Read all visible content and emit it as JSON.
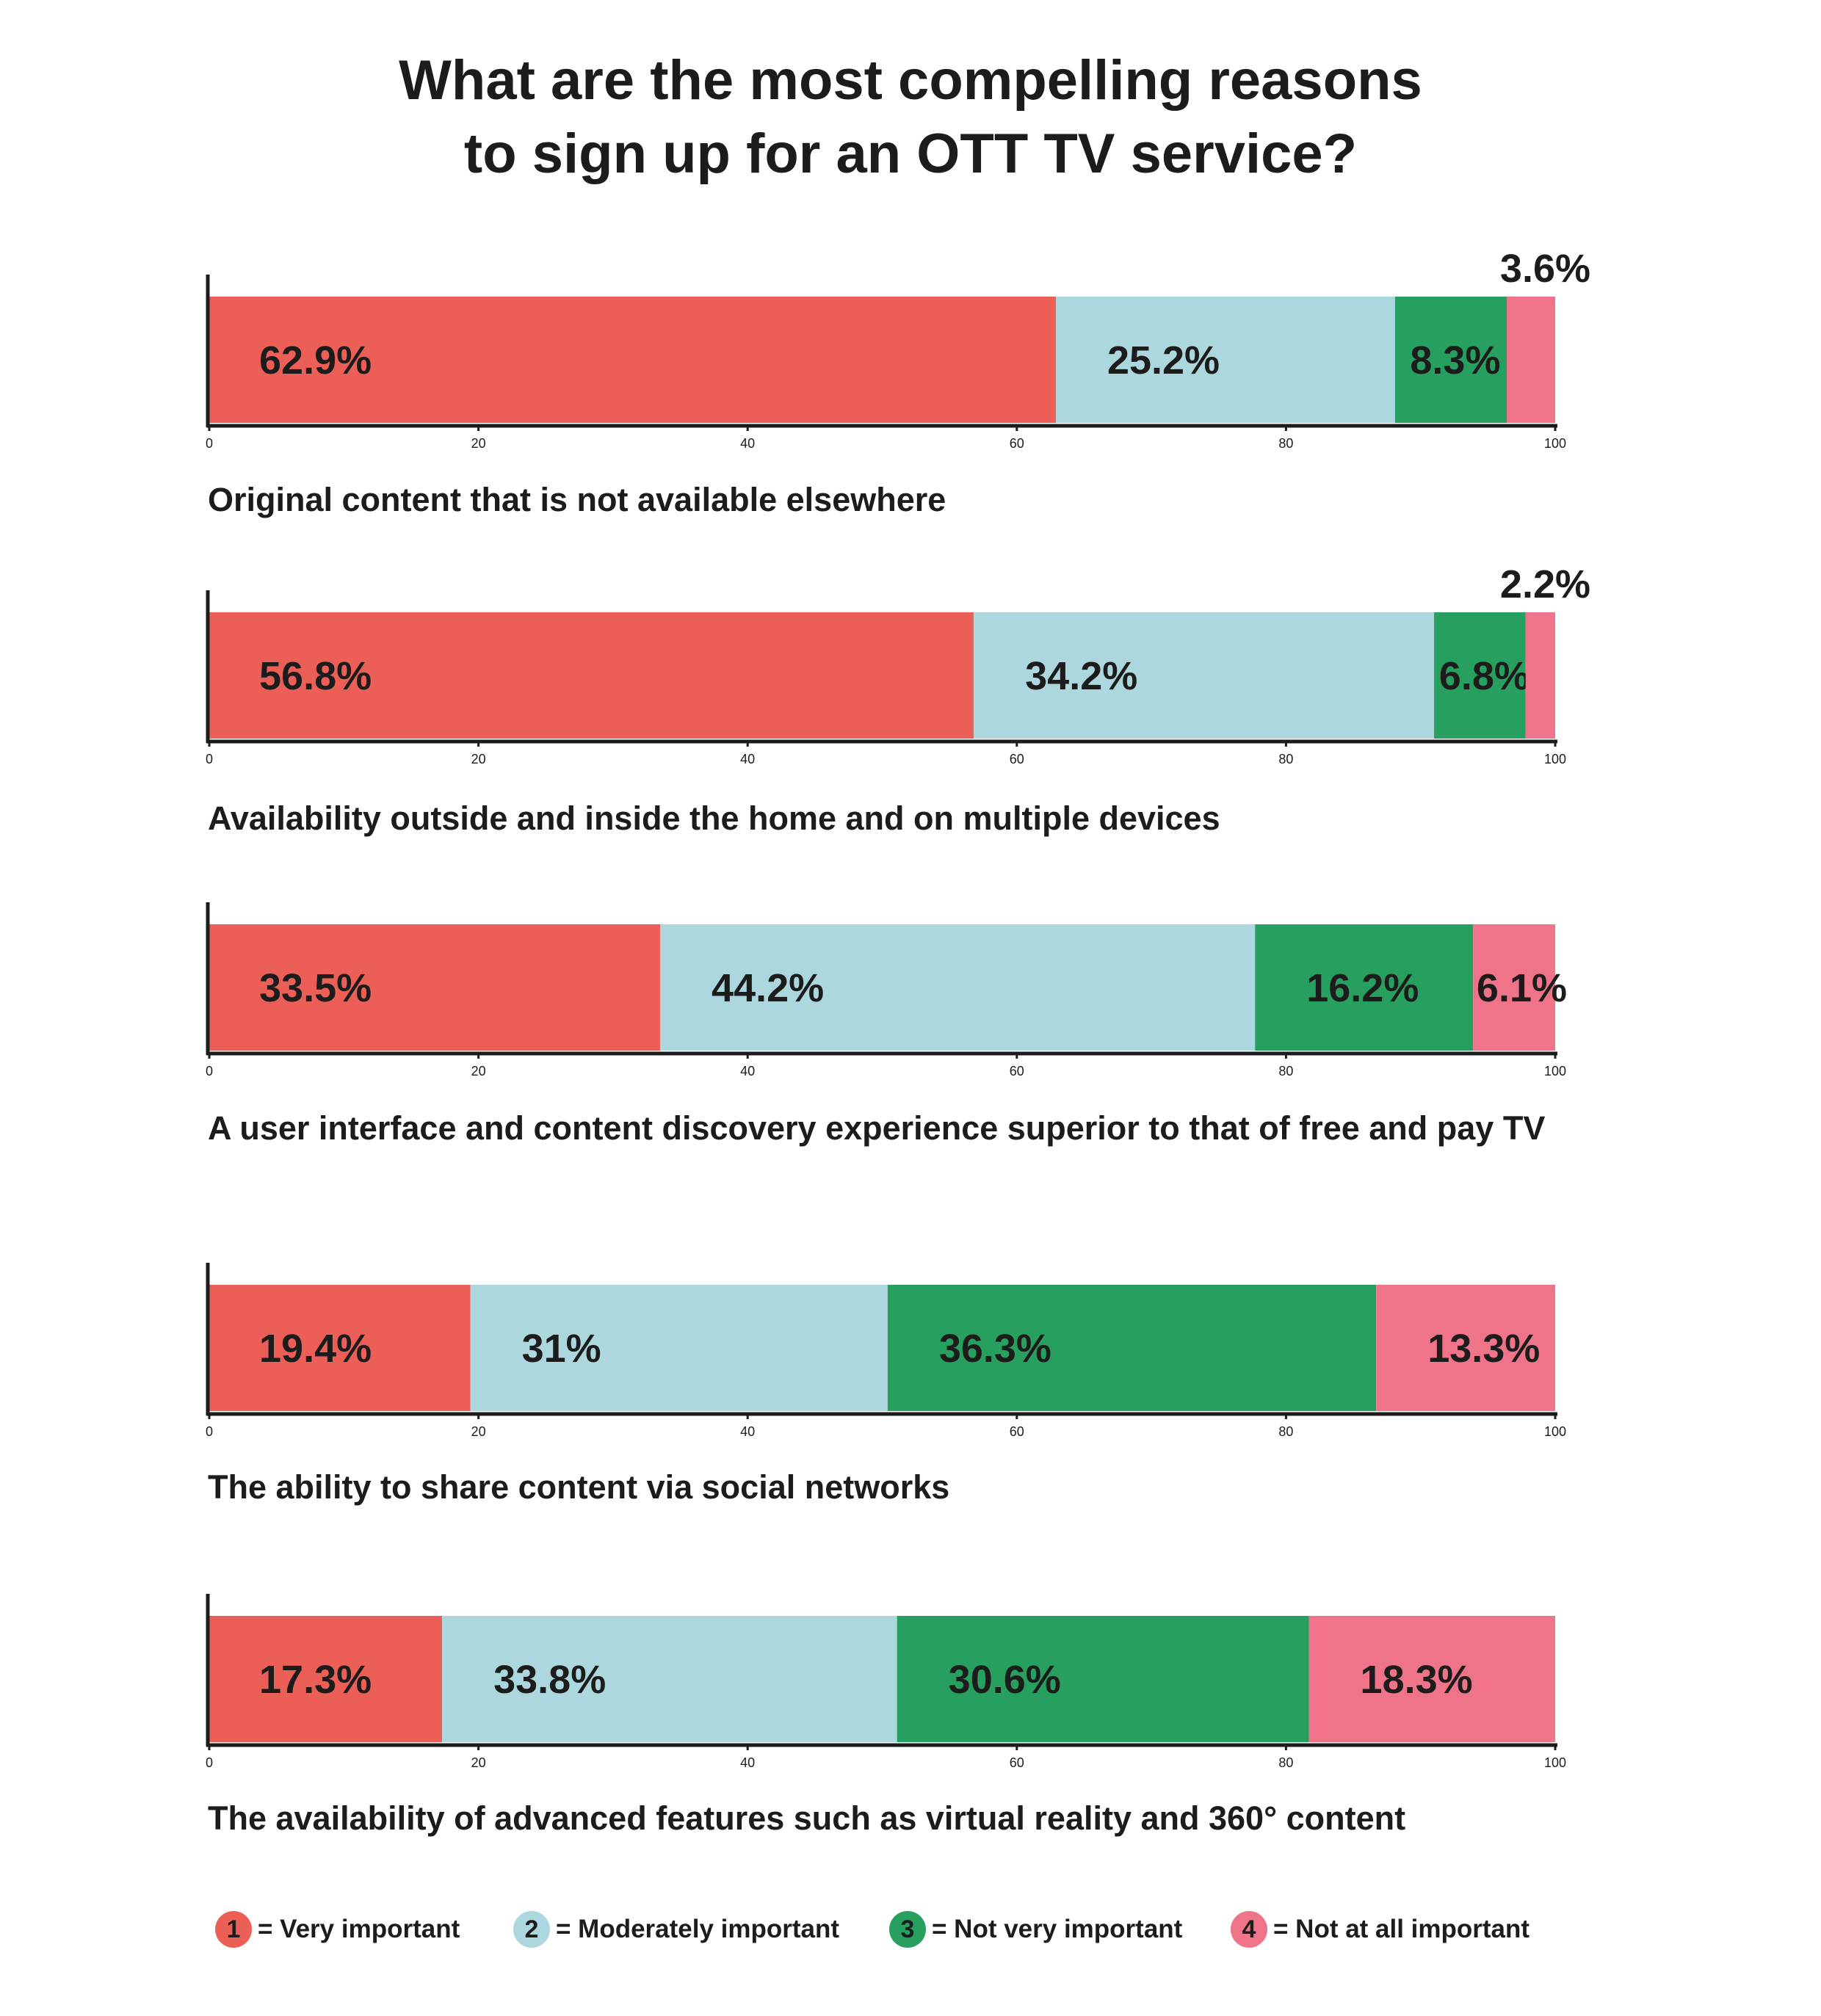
{
  "title": {
    "line1": "What are the most compelling reasons",
    "line2": "to sign up for an OTT TV service?"
  },
  "colors": {
    "very_important": "#eb5f57",
    "moderately_important": "#add7de",
    "not_very_important": "#279f5e",
    "not_at_all_important": "#ef7389",
    "axis": "#1c1c1c"
  },
  "legend": [
    {
      "key": "1",
      "label": "= Very important",
      "color": "#eb5f57"
    },
    {
      "key": "2",
      "label": "= Moderately important",
      "color": "#add7de"
    },
    {
      "key": "3",
      "label": "= Not very important",
      "color": "#279f5e"
    },
    {
      "key": "4",
      "label": "= Not at all important",
      "color": "#ef7389"
    }
  ],
  "chart_data": {
    "type": "bar",
    "orientation": "horizontal",
    "stacked": true,
    "title": "What are the most compelling reasons to sign up for an OTT TV service?",
    "xlim": [
      0,
      100
    ],
    "x_ticks": [
      "0",
      "20",
      "40",
      "60",
      "80",
      "100"
    ],
    "legend_position": "bottom",
    "series_order": [
      "= Very important",
      "= Moderately important",
      "= Not very important",
      "= Not at all important"
    ],
    "items": [
      {
        "category": "Original content that is not available elsewhere",
        "values": [
          62.9,
          25.2,
          8.3,
          3.6
        ],
        "labels": [
          "62.9%",
          "25.2%",
          "8.3%",
          "3.6%"
        ]
      },
      {
        "category": "Availability outside and inside the home and on multiple devices",
        "values": [
          56.8,
          34.2,
          6.8,
          2.2
        ],
        "labels": [
          "56.8%",
          "34.2%",
          "6.8%",
          "2.2%"
        ]
      },
      {
        "category": "A user interface and content discovery experience superior to that of free and pay TV",
        "values": [
          33.5,
          44.2,
          16.2,
          6.1
        ],
        "labels": [
          "33.5%",
          "44.2%",
          "16.2%",
          "6.1%"
        ]
      },
      {
        "category": "The ability to share content via social networks",
        "values": [
          19.4,
          31,
          36.3,
          13.3
        ],
        "labels": [
          "19.4%",
          "31%",
          "36.3%",
          "13.3%"
        ]
      },
      {
        "category": "The availability of advanced features such as virtual reality and 360° content",
        "values": [
          17.3,
          33.8,
          30.6,
          18.3
        ],
        "labels": [
          "17.3%",
          "33.8%",
          "30.6%",
          "18.3%"
        ]
      }
    ]
  }
}
